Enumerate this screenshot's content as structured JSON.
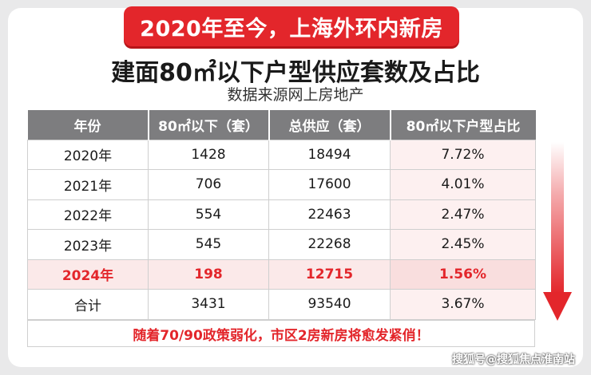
{
  "banner": "2020年至今，上海外环内新房",
  "title": "建面80㎡以下户型供应套数及占比",
  "subtitle": "数据来源网上房地产",
  "chart_data": {
    "type": "table",
    "headers": [
      "年份",
      "80㎡以下（套）",
      "总供应（套）",
      "80㎡以下户型占比"
    ],
    "rows": [
      {
        "year": "2020年",
        "small": "1428",
        "total": "18494",
        "pct": "7.72%"
      },
      {
        "year": "2021年",
        "small": "706",
        "total": "17600",
        "pct": "4.01%"
      },
      {
        "year": "2022年",
        "small": "554",
        "total": "22463",
        "pct": "2.47%"
      },
      {
        "year": "2023年",
        "small": "545",
        "total": "22268",
        "pct": "2.45%"
      },
      {
        "year": "2024年",
        "small": "198",
        "total": "12715",
        "pct": "1.56%"
      },
      {
        "year": "合计",
        "small": "3431",
        "total": "93540",
        "pct": "3.67%"
      }
    ],
    "highlight_row": "2024年"
  },
  "footnote": "随着70/90政策弱化，市区2房新房将愈发紧俏！",
  "watermark": "搜狐号@搜狐焦点淮南站",
  "colors": {
    "accent": "#e3262b",
    "header": "#7d7d7f",
    "highlight_bg": "#fbe9e9"
  }
}
